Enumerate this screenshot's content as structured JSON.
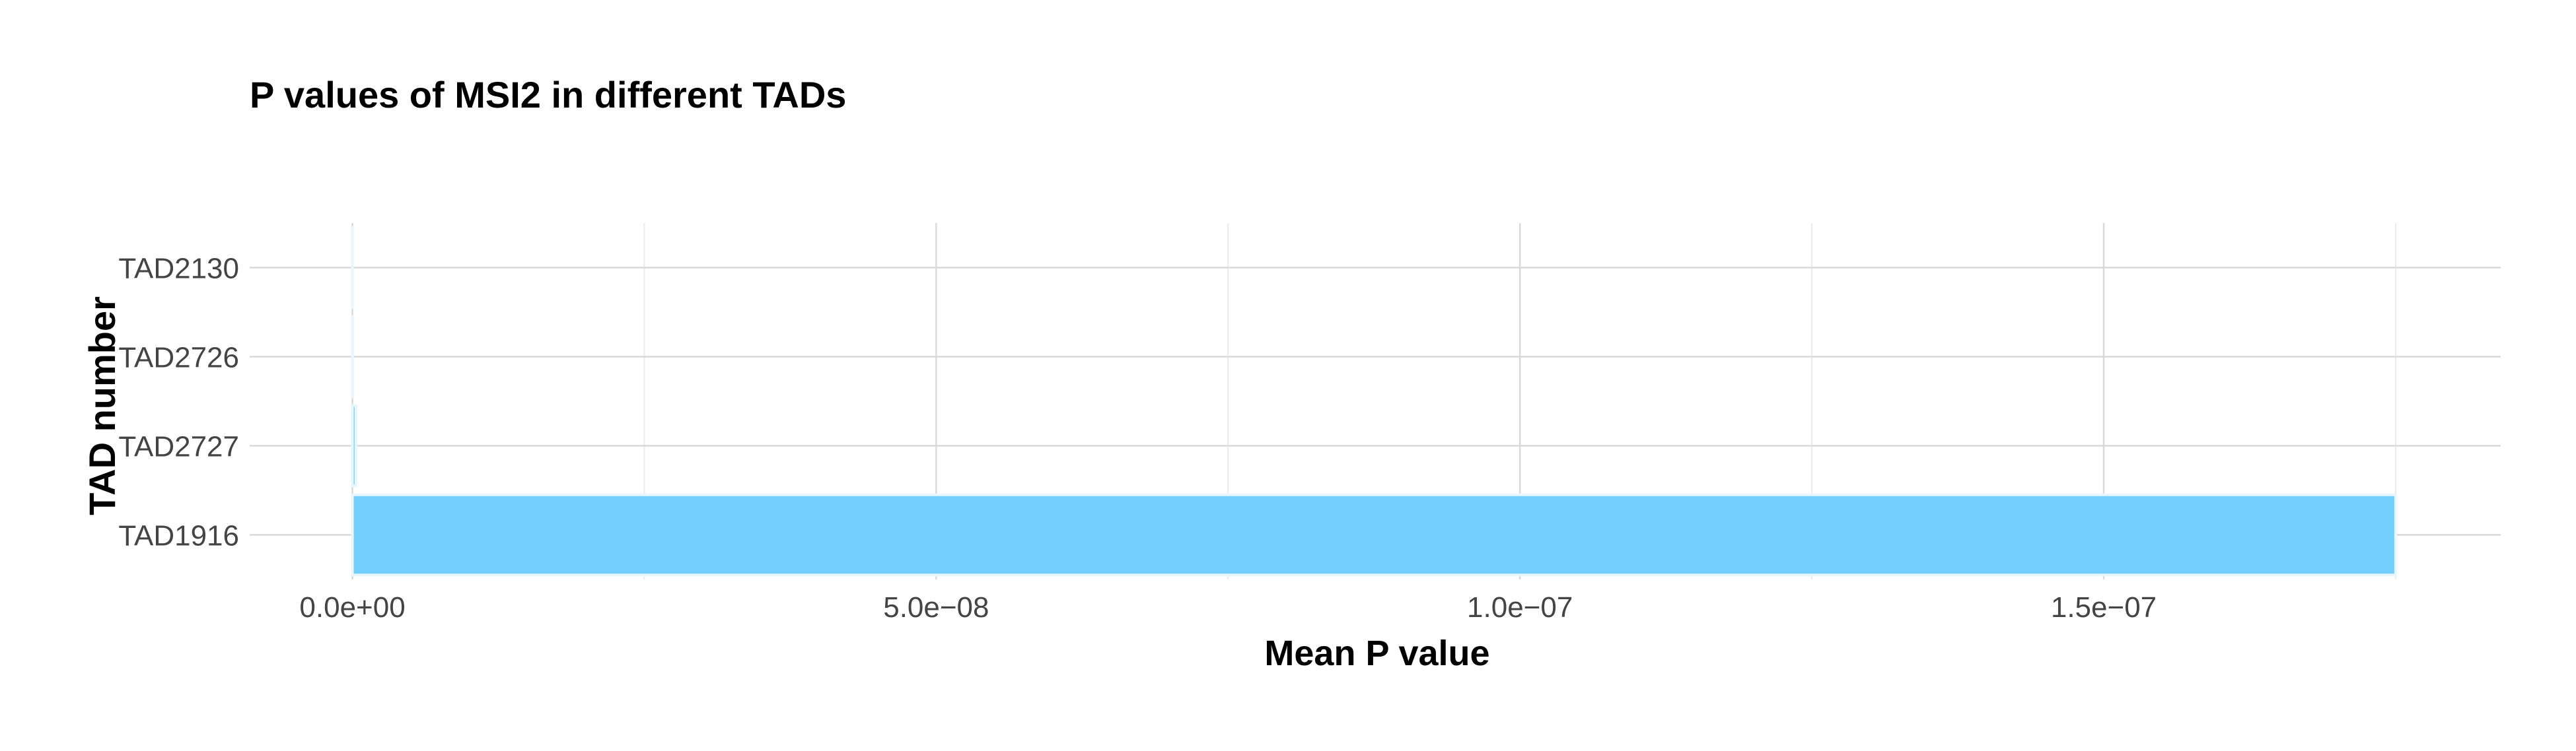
{
  "chart_data": {
    "type": "bar",
    "orientation": "horizontal",
    "title": "P values of MSI2 in different TADs",
    "xlabel": "Mean P value",
    "ylabel": "TAD number",
    "categories": [
      "TAD1916",
      "TAD2727",
      "TAD2726",
      "TAD2130"
    ],
    "values": [
      1.75e-07,
      3e-10,
      1e-11,
      1e-12
    ],
    "xlim": [
      -8.8e-09,
      1.84e-07
    ],
    "x_ticks": [
      0,
      5e-08,
      1e-07,
      1.5e-07
    ],
    "x_tick_labels": [
      "0.0e+00",
      "5.0e−08",
      "1.0e−07",
      "1.5e−07"
    ],
    "grid": true,
    "legend": "none",
    "bar_color": "#75cffc",
    "bar_outline_color": "#e8f6fe"
  }
}
